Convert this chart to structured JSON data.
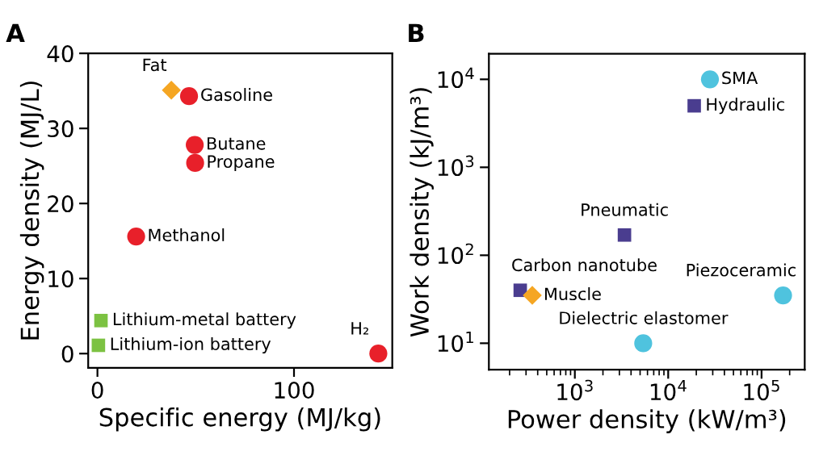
{
  "chart_data": [
    {
      "type": "scatter",
      "title": "A",
      "xlabel": "Specific energy (MJ/kg)",
      "ylabel": "Energy density (MJ/L)",
      "xlim": [
        -4.7,
        150
      ],
      "xticks": [
        0,
        100
      ],
      "ylim": [
        -1.9,
        40
      ],
      "yticks": [
        0,
        10,
        20,
        30,
        40
      ],
      "grid": false,
      "series": [
        {
          "color": "#e8202a",
          "marker": "circle",
          "x": [
            46.6,
            49.5,
            49.7,
            19.7,
            142.9
          ],
          "values": [
            34.3,
            27.8,
            25.4,
            15.6,
            0
          ]
        },
        {
          "color": "#f5a623",
          "marker": "diamond",
          "x": [
            37.6
          ],
          "values": [
            35.1
          ]
        },
        {
          "color": "#7cc242",
          "marker": "square",
          "x": [
            1.8,
            0.5
          ],
          "values": [
            4.4,
            1.1
          ]
        }
      ],
      "annotations": [
        {
          "text": "Gasoline",
          "x": 46.6,
          "y": 34.3
        },
        {
          "text": "Butane",
          "x": 49.5,
          "y": 27.8
        },
        {
          "text": "Propane",
          "x": 49.7,
          "y": 25.4
        },
        {
          "text": "Methanol",
          "x": 19.7,
          "y": 15.6
        },
        {
          "text": "H₂",
          "x": 142.9,
          "y": 0
        },
        {
          "text": "Fat",
          "x": 37.6,
          "y": 35.1
        },
        {
          "text": "Lithium-metal battery",
          "x": 1.8,
          "y": 4.4
        },
        {
          "text": "Lithium-ion battery",
          "x": 0.5,
          "y": 1.1
        }
      ]
    },
    {
      "type": "scatter",
      "title": "B",
      "xlabel": "Power density (kW/m³)",
      "ylabel": "Work density (kJ/m³)",
      "log": "xy",
      "xlim": [
        120,
        290000
      ],
      "xticks": [
        {
          "value": 1000,
          "label": "10$^{3}$"
        },
        {
          "value": 10000,
          "label": "10$^{4}$"
        },
        {
          "value": 100000,
          "label": "10$^{5}$"
        }
      ],
      "ylim": [
        5,
        19500
      ],
      "yticks": [
        {
          "value": 10,
          "label": "10$^{1}$"
        },
        {
          "value": 100,
          "label": "10$^{2}$"
        },
        {
          "value": 1000,
          "label": "10$^{3}$"
        },
        {
          "value": 10000,
          "label": "10$^{4}$"
        }
      ],
      "grid": false,
      "series": [
        {
          "color": "#4a3d8f",
          "marker": "square",
          "x": [
            19000,
            3400,
            260
          ],
          "values": [
            5000,
            170,
            40
          ]
        },
        {
          "color": "#4fc3de",
          "marker": "circle",
          "x": [
            28000,
            5400,
            170000
          ],
          "values": [
            10000,
            10,
            35
          ]
        },
        {
          "color": "#f5a623",
          "marker": "diamond",
          "x": [
            350
          ],
          "values": [
            35
          ]
        }
      ],
      "annotations": [
        {
          "text": "Hydraulic",
          "x": 19000,
          "y": 5000
        },
        {
          "text": "Pneumatic",
          "x": 3400,
          "y": 170
        },
        {
          "text": "Carbon nanotube",
          "x": 260,
          "y": 40
        },
        {
          "text": "SMA",
          "x": 28000,
          "y": 10000
        },
        {
          "text": "Dielectric elastomer",
          "x": 5400,
          "y": 10
        },
        {
          "text": "Piezoceramic",
          "x": 170000,
          "y": 35
        },
        {
          "text": "Muscle",
          "x": 350,
          "y": 35
        }
      ]
    }
  ]
}
